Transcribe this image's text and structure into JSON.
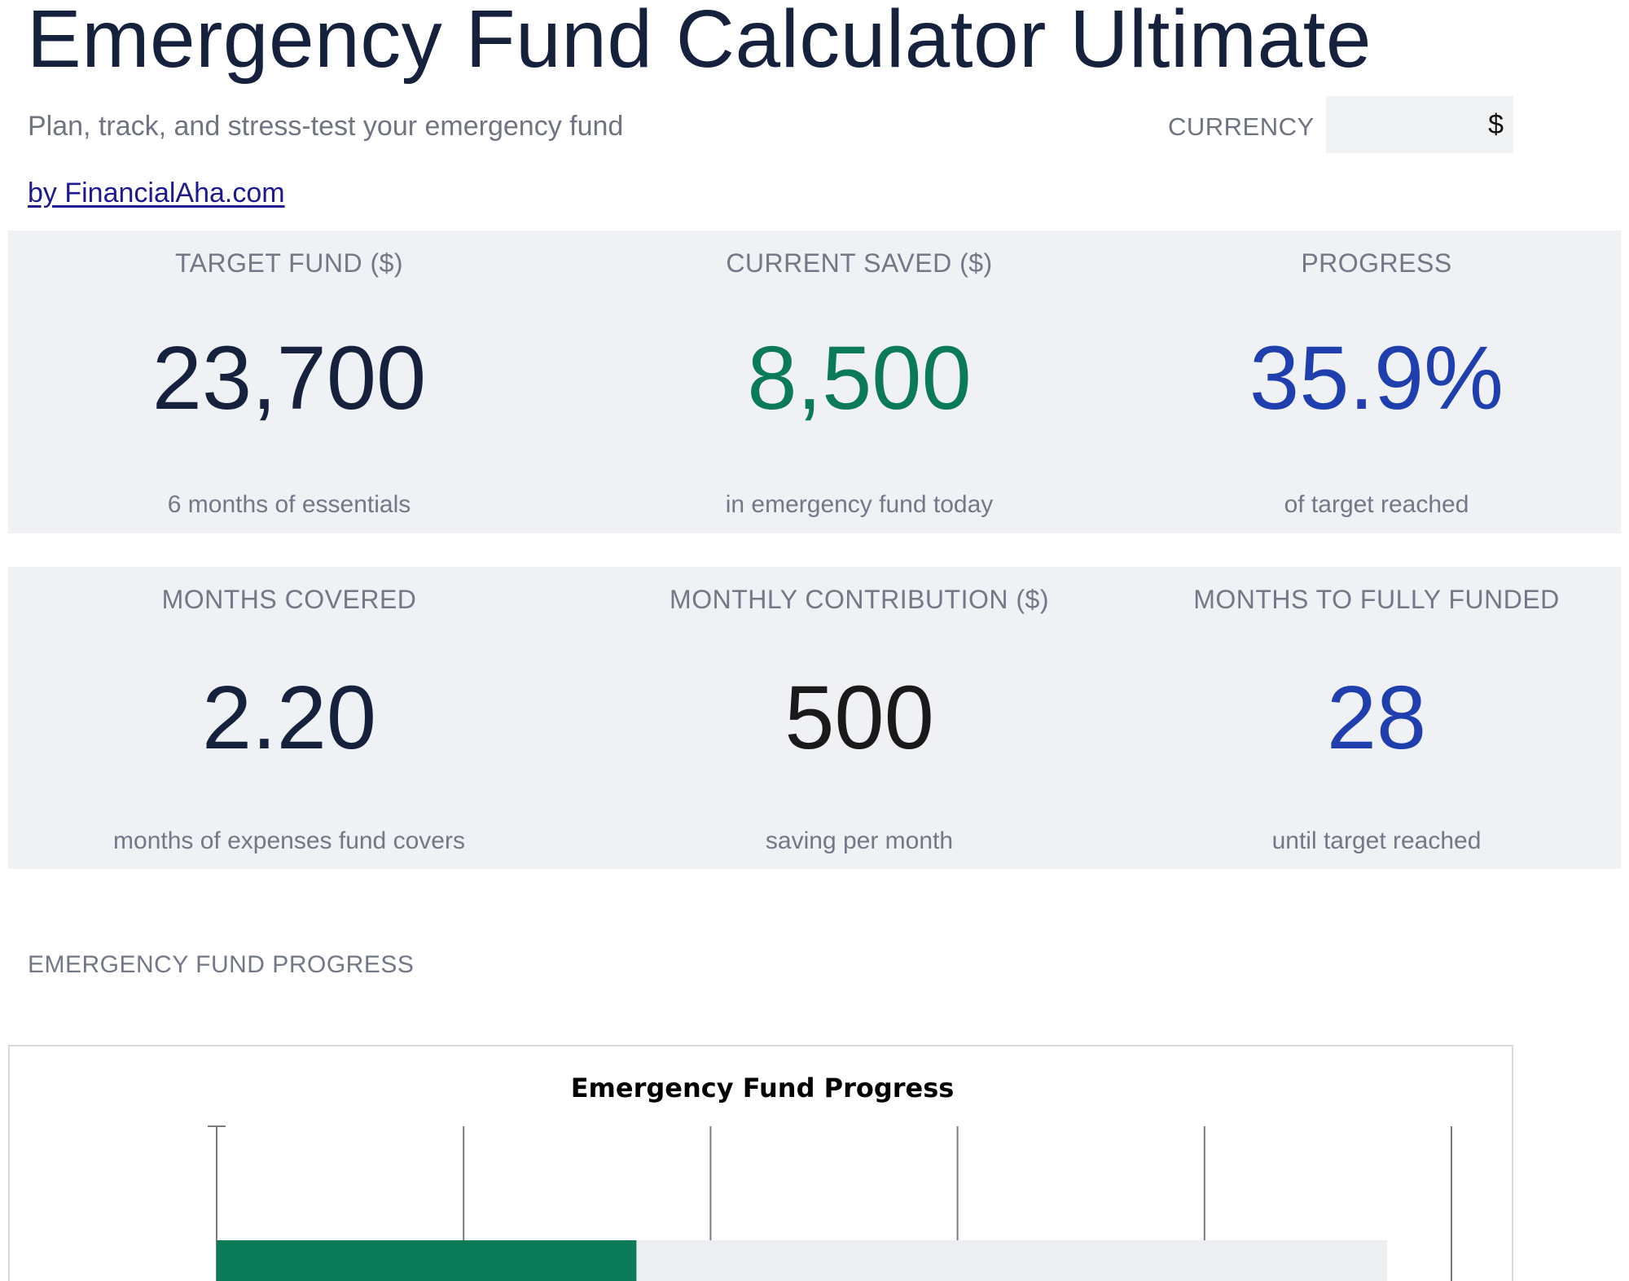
{
  "header": {
    "title": "Emergency Fund Calculator Ultimate",
    "subtitle": "Plan, track, and stress-test your emergency fund",
    "byline": "by FinancialAha.com",
    "currency_label": "CURRENCY",
    "currency_value": "$"
  },
  "metrics_row1": [
    {
      "label": "TARGET FUND ($)",
      "value": "23,700",
      "note": "6 months of essentials",
      "color": "#16213d"
    },
    {
      "label": "CURRENT SAVED ($)",
      "value": "8,500",
      "note": "in emergency fund today",
      "color": "#0b7a56"
    },
    {
      "label": "PROGRESS",
      "value": "35.9%",
      "note": "of target reached",
      "color": "#1f3fae"
    }
  ],
  "metrics_row2": [
    {
      "label": "MONTHS COVERED",
      "value": "2.20",
      "note": "months of expenses fund covers",
      "color": "#16213d"
    },
    {
      "label": "MONTHLY CONTRIBUTION ($)",
      "value": "500",
      "note": "saving per month",
      "color": "#1a1a1a"
    },
    {
      "label": "MONTHS TO FULLY FUNDED",
      "value": "28",
      "note": "until target reached",
      "color": "#1f3fae"
    }
  ],
  "section": {
    "progress_label": "EMERGENCY FUND PROGRESS"
  },
  "chart_data": {
    "type": "bar",
    "orientation": "horizontal",
    "title": "Emergency Fund Progress",
    "series": [
      {
        "values": [
          8500
        ],
        "color": "#0b7a56"
      },
      {
        "values": [
          15200
        ],
        "color": "#eceef2"
      }
    ],
    "xlim": [
      0,
      25000
    ],
    "gridlines": [
      0,
      5000,
      10000,
      15000,
      20000,
      25000
    ],
    "grid": true
  }
}
